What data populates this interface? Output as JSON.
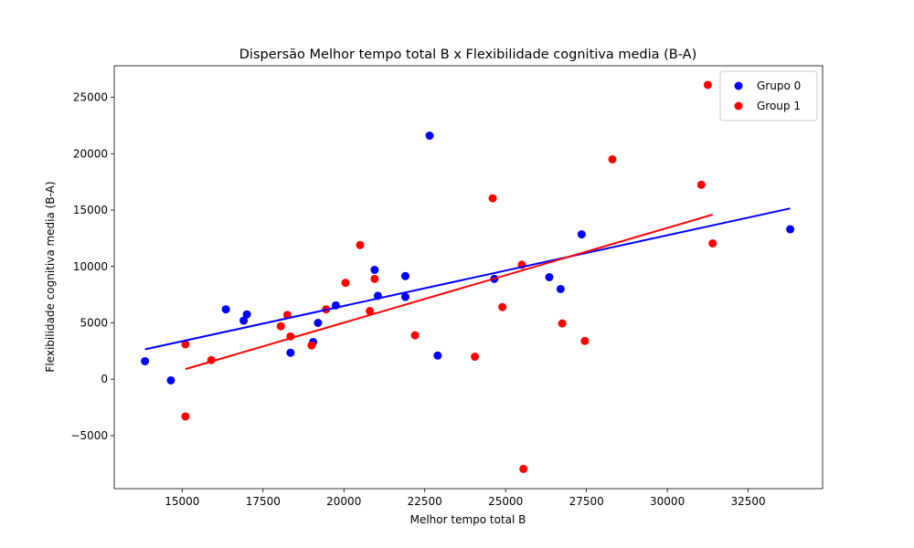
{
  "chart_data": {
    "type": "scatter",
    "title": "Dispersão Melhor tempo total B x Flexibilidade cognitiva media (B-A)",
    "xlabel": "Melhor tempo total B",
    "ylabel": "Flexibilidade cognitiva media (B-A)",
    "xlim": [
      12900,
      34800
    ],
    "ylim": [
      -9700,
      27800
    ],
    "xticks": [
      15000,
      17500,
      20000,
      22500,
      25000,
      27500,
      30000,
      32500
    ],
    "yticks": [
      -5000,
      0,
      5000,
      10000,
      15000,
      20000,
      25000
    ],
    "grid": false,
    "legend_position": "top-right",
    "series": [
      {
        "name": "Grupo 0",
        "color": "#0000ff",
        "points": [
          [
            13850,
            1600
          ],
          [
            14650,
            -100
          ],
          [
            16350,
            6200
          ],
          [
            16900,
            5200
          ],
          [
            17000,
            5750
          ],
          [
            18350,
            2350
          ],
          [
            19050,
            3300
          ],
          [
            19200,
            5000
          ],
          [
            19750,
            6550
          ],
          [
            20950,
            9700
          ],
          [
            21050,
            7400
          ],
          [
            21900,
            7300
          ],
          [
            21900,
            9150
          ],
          [
            22650,
            21600
          ],
          [
            22900,
            2100
          ],
          [
            24650,
            8900
          ],
          [
            26350,
            9050
          ],
          [
            26700,
            8000
          ],
          [
            27350,
            12850
          ],
          [
            33800,
            13300
          ]
        ],
        "fit_line": {
          "x": [
            13850,
            33800
          ],
          "y": [
            2650,
            15150
          ]
        }
      },
      {
        "name": "Group 1",
        "color": "#ff0000",
        "points": [
          [
            15100,
            3100
          ],
          [
            15100,
            -3300
          ],
          [
            15900,
            1700
          ],
          [
            18050,
            4700
          ],
          [
            18250,
            5700
          ],
          [
            18350,
            3800
          ],
          [
            19000,
            3000
          ],
          [
            19450,
            6200
          ],
          [
            20050,
            8550
          ],
          [
            20500,
            11900
          ],
          [
            20800,
            6050
          ],
          [
            20950,
            8900
          ],
          [
            22200,
            3900
          ],
          [
            24050,
            2000
          ],
          [
            24600,
            16050
          ],
          [
            24900,
            6400
          ],
          [
            25500,
            10150
          ],
          [
            25550,
            -7950
          ],
          [
            26750,
            4950
          ],
          [
            27450,
            3400
          ],
          [
            28300,
            19500
          ],
          [
            31050,
            17250
          ],
          [
            31250,
            26100
          ],
          [
            31400,
            12050
          ]
        ],
        "fit_line": {
          "x": [
            15100,
            31400
          ],
          "y": [
            900,
            14600
          ]
        }
      }
    ]
  }
}
